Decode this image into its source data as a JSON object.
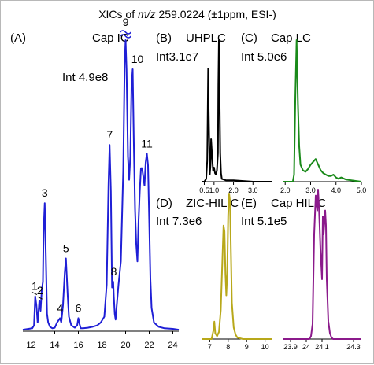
{
  "title": {
    "prefix": "XICs of ",
    "italic": "m/z",
    "suffix": " 259.0224 (±1ppm, ESI-)"
  },
  "chart_data": [
    {
      "type": "line",
      "panel": "(A)",
      "name": "Cap IC",
      "intensity": "Int 4.9e8",
      "color": "#1f1fd6",
      "xlim": [
        11.3,
        24.5
      ],
      "xticks": [
        "12",
        "14",
        "16",
        "18",
        "20",
        "22",
        "24"
      ],
      "xtick_values": [
        12,
        14,
        16,
        18,
        20,
        22,
        24
      ],
      "ylim": [
        0,
        1
      ],
      "axis_break": "≈",
      "x": [
        11.3,
        12.1,
        12.25,
        12.35,
        12.45,
        12.55,
        12.65,
        12.7,
        12.8,
        12.9,
        13.0,
        13.05,
        13.15,
        13.25,
        13.35,
        13.45,
        13.6,
        13.8,
        14.0,
        14.2,
        14.45,
        14.55,
        14.7,
        14.85,
        14.95,
        15.1,
        15.2,
        15.4,
        15.7,
        15.9,
        16.0,
        16.1,
        16.2,
        16.4,
        16.8,
        17.2,
        17.6,
        17.9,
        18.2,
        18.4,
        18.55,
        18.65,
        18.75,
        18.85,
        18.95,
        19.0,
        19.08,
        19.15,
        19.25,
        19.4,
        19.6,
        19.8,
        19.92,
        20.0,
        20.08,
        20.12,
        20.2,
        20.3,
        20.4,
        20.5,
        20.6,
        20.7,
        20.8,
        20.9,
        21.0,
        21.1,
        21.2,
        21.3,
        21.4,
        21.6,
        21.7,
        21.8,
        21.9,
        22.0,
        22.1,
        22.2,
        22.4,
        22.8,
        23.3,
        24.0,
        24.5
      ],
      "y": [
        0.005,
        0.01,
        0.02,
        0.12,
        0.09,
        0.03,
        0.08,
        0.105,
        0.07,
        0.14,
        0.17,
        0.34,
        0.44,
        0.26,
        0.06,
        0.03,
        0.015,
        0.01,
        0.012,
        0.03,
        0.045,
        0.03,
        0.09,
        0.2,
        0.25,
        0.12,
        0.05,
        0.02,
        0.012,
        0.02,
        0.045,
        0.025,
        0.01,
        0.01,
        0.012,
        0.015,
        0.02,
        0.03,
        0.05,
        0.16,
        0.5,
        0.64,
        0.48,
        0.15,
        0.17,
        0.12,
        0.06,
        0.04,
        0.09,
        0.16,
        0.24,
        0.55,
        0.92,
        1.0,
        0.9,
        0.8,
        0.6,
        0.52,
        0.6,
        0.84,
        0.9,
        0.64,
        0.42,
        0.3,
        0.24,
        0.38,
        0.48,
        0.56,
        0.56,
        0.5,
        0.58,
        0.61,
        0.57,
        0.38,
        0.18,
        0.08,
        0.03,
        0.015,
        0.01,
        0.008,
        0.005
      ],
      "peak_labels": [
        {
          "label": "1",
          "x": 12.3,
          "y": 0.12
        },
        {
          "label": "2",
          "x": 12.75,
          "y": 0.105
        },
        {
          "label": "3",
          "x": 13.15,
          "y": 0.44
        },
        {
          "label": "4",
          "x": 14.45,
          "y": 0.045
        },
        {
          "label": "5",
          "x": 14.95,
          "y": 0.25
        },
        {
          "label": "6",
          "x": 16.0,
          "y": 0.045
        },
        {
          "label": "7",
          "x": 18.65,
          "y": 0.64
        },
        {
          "label": "8",
          "x": 19.0,
          "y": 0.17
        },
        {
          "label": "9",
          "x": 20.0,
          "y": 1.0
        },
        {
          "label": "10",
          "x": 21.0,
          "y": 0.9
        },
        {
          "label": "11",
          "x": 21.8,
          "y": 0.61
        }
      ]
    },
    {
      "type": "line",
      "panel": "(B)",
      "name": "UHPLC",
      "intensity": "Int3.1e7",
      "color": "#000000",
      "xlim": [
        0.4,
        4.0
      ],
      "xticks": [
        "0.5",
        "1.0",
        "2.0",
        "3.0"
      ],
      "xtick_values": [
        0.5,
        1.0,
        2.0,
        3.0
      ],
      "ylim": [
        0,
        1
      ],
      "x": [
        0.4,
        0.5,
        0.55,
        0.6,
        0.65,
        0.7,
        0.72,
        0.78,
        0.82,
        0.85,
        0.9,
        0.95,
        1.0,
        1.05,
        1.1,
        1.15,
        1.2,
        1.22,
        1.25,
        1.28,
        1.32,
        1.36,
        1.4,
        1.6,
        2.0,
        3.0,
        4.0
      ],
      "y": [
        0.0,
        0.0,
        0.01,
        0.02,
        0.15,
        0.8,
        0.55,
        0.05,
        0.12,
        0.3,
        0.18,
        0.08,
        0.1,
        0.06,
        0.05,
        0.08,
        0.2,
        0.68,
        1.0,
        0.62,
        0.2,
        0.06,
        0.02,
        0.01,
        0.01,
        0.0,
        0.0
      ]
    },
    {
      "type": "line",
      "panel": "(C)",
      "name": "Cap LC",
      "intensity": "Int 5.0e6",
      "color": "#1a8a1a",
      "xlim": [
        1.9,
        5.0
      ],
      "xticks": [
        "2.0",
        "3.0",
        "4.0",
        "5.0"
      ],
      "xtick_values": [
        2.0,
        3.0,
        4.0,
        5.0
      ],
      "ylim": [
        0,
        1
      ],
      "x": [
        1.9,
        2.3,
        2.35,
        2.4,
        2.45,
        2.5,
        2.55,
        2.6,
        2.7,
        2.8,
        2.9,
        3.0,
        3.1,
        3.2,
        3.3,
        3.4,
        3.5,
        3.6,
        3.7,
        3.8,
        3.9,
        4.0,
        4.1,
        4.2,
        4.4,
        4.6,
        4.8,
        5.0
      ],
      "y": [
        0.0,
        0.0,
        0.05,
        0.6,
        1.0,
        0.55,
        0.25,
        0.12,
        0.08,
        0.07,
        0.09,
        0.12,
        0.14,
        0.16,
        0.12,
        0.08,
        0.06,
        0.05,
        0.04,
        0.04,
        0.05,
        0.03,
        0.02,
        0.03,
        0.015,
        0.01,
        0.005,
        0.0
      ]
    },
    {
      "type": "line",
      "panel": "(D)",
      "name": "ZIC-HILIC",
      "intensity": "Int 7.3e6",
      "color": "#b8a81a",
      "xlim": [
        6.6,
        10.4
      ],
      "xticks": [
        "7",
        "8",
        "9",
        "10"
      ],
      "xtick_values": [
        7,
        8,
        9,
        10
      ],
      "ylim": [
        0,
        1
      ],
      "x": [
        6.6,
        7.1,
        7.2,
        7.25,
        7.3,
        7.4,
        7.5,
        7.6,
        7.7,
        7.75,
        7.8,
        7.85,
        7.9,
        7.95,
        8.0,
        8.05,
        8.1,
        8.15,
        8.2,
        8.3,
        8.4,
        8.5,
        8.8,
        9.5,
        10.4
      ],
      "y": [
        0.0,
        0.0,
        0.06,
        0.12,
        0.04,
        0.02,
        0.05,
        0.2,
        0.6,
        0.78,
        0.74,
        0.45,
        0.3,
        0.45,
        0.85,
        1.0,
        0.95,
        0.6,
        0.25,
        0.08,
        0.03,
        0.01,
        0.0,
        0.0,
        0.0
      ]
    },
    {
      "type": "line",
      "panel": "(E)",
      "name": "Cap HILIC",
      "intensity": "Int 5.1e5",
      "color": "#8b1a8b",
      "xlim": [
        23.85,
        24.35
      ],
      "xticks": [
        "23.9",
        "24",
        "24.1",
        "24.3"
      ],
      "xtick_values": [
        23.9,
        24.0,
        24.1,
        24.3
      ],
      "ylim": [
        0,
        1
      ],
      "x": [
        23.85,
        24.02,
        24.03,
        24.04,
        24.05,
        24.06,
        24.07,
        24.075,
        24.08,
        24.09,
        24.1,
        24.105,
        24.11,
        24.12,
        24.125,
        24.13,
        24.14,
        24.15,
        24.16,
        24.17,
        24.35
      ],
      "y": [
        0.0,
        0.0,
        0.02,
        0.1,
        0.7,
        0.96,
        0.86,
        1.0,
        0.9,
        0.6,
        0.4,
        0.82,
        0.7,
        0.86,
        0.76,
        0.4,
        0.12,
        0.04,
        0.01,
        0.0,
        0.0
      ]
    }
  ]
}
